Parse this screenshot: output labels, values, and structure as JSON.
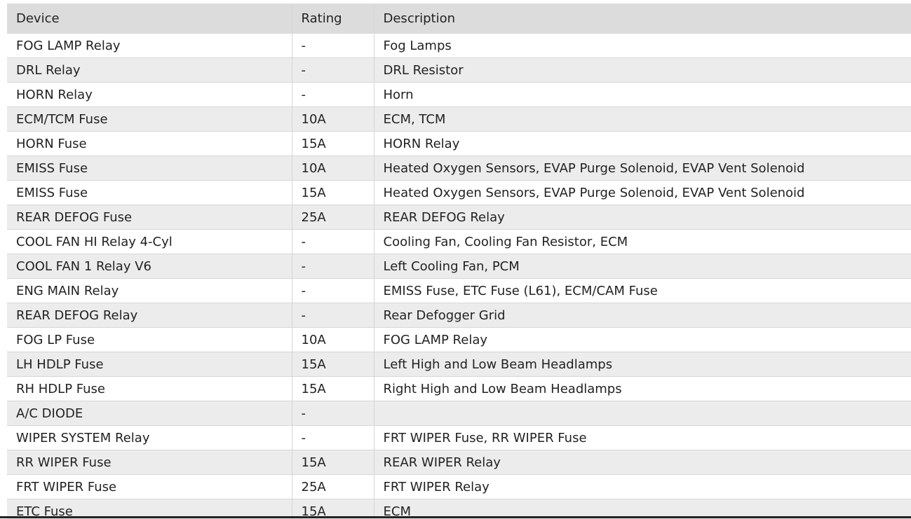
{
  "table": {
    "header": [
      "Device",
      "Rating",
      "Description"
    ],
    "rows": [
      [
        "FOG LAMP Relay",
        "-",
        "Fog Lamps"
      ],
      [
        "DRL Relay",
        "-",
        "DRL Resistor"
      ],
      [
        "HORN Relay",
        "-",
        "Horn"
      ],
      [
        "ECM/TCM Fuse",
        "10A",
        "ECM, TCM"
      ],
      [
        "HORN Fuse",
        "15A",
        "HORN Relay"
      ],
      [
        "EMISS Fuse",
        "10A",
        "Heated Oxygen Sensors, EVAP Purge Solenoid, EVAP Vent Solenoid"
      ],
      [
        "EMISS Fuse",
        "15A",
        "Heated Oxygen Sensors, EVAP Purge Solenoid, EVAP Vent Solenoid"
      ],
      [
        "REAR DEFOG Fuse",
        "25A",
        "REAR DEFOG Relay"
      ],
      [
        "COOL FAN HI Relay 4-Cyl",
        "-",
        "Cooling Fan, Cooling Fan Resistor, ECM"
      ],
      [
        "COOL FAN 1 Relay V6",
        "-",
        "Left Cooling Fan, PCM"
      ],
      [
        "ENG MAIN Relay",
        "-",
        "EMISS Fuse, ETC Fuse (L61), ECM/CAM Fuse"
      ],
      [
        "REAR DEFOG Relay",
        "-",
        "Rear Defogger Grid"
      ],
      [
        "FOG LP Fuse",
        "10A",
        "FOG LAMP Relay"
      ],
      [
        "LH HDLP Fuse",
        "15A",
        "Left High and Low Beam Headlamps"
      ],
      [
        "RH HDLP Fuse",
        "15A",
        "Right High and Low Beam Headlamps"
      ],
      [
        "A/C DIODE",
        "-",
        null
      ],
      [
        "WIPER SYSTEM Relay",
        "-",
        "FRT WIPER Fuse, RR WIPER Fuse"
      ],
      [
        "RR WIPER Fuse",
        "15A",
        "REAR WIPER Relay"
      ],
      [
        "FRT WIPER Fuse",
        "25A",
        "FRT WIPER Relay"
      ],
      [
        "ETC Fuse",
        "15A",
        "ECM"
      ]
    ]
  }
}
